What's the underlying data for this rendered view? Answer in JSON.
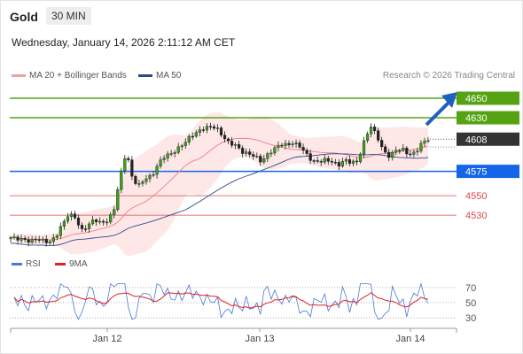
{
  "header": {
    "instrument": "Gold",
    "timeframe": "30 MIN",
    "datetime": "Wednesday, January 14, 2026 2:11:12 AM CET"
  },
  "legend": {
    "ma20": "MA 20 + Bollinger Bands",
    "ma50": "MA 50",
    "credit": "Research © 2026 Trading Central"
  },
  "rsi_legend": {
    "rsi": "RSI",
    "ma": "9MA"
  },
  "colors": {
    "green": "#55a313",
    "blue": "#1565e8",
    "red": "#e04848",
    "dark": "#333333",
    "ma20": "#ef7f7f",
    "band": "#fde3e3",
    "ma50": "#2a4a8a",
    "rsi": "#4a78d8",
    "rsima": "#e02020"
  },
  "chart_data": {
    "type": "candlestick",
    "y_range": [
      4492,
      4660
    ],
    "x_labels": [
      "Jan 12",
      "Jan 13",
      "Jan 14"
    ],
    "levels": [
      {
        "value": 4650,
        "label": "4650",
        "kind": "resistance"
      },
      {
        "value": 4630,
        "label": "4630",
        "kind": "resistance"
      },
      {
        "value": 4608,
        "label": "4608",
        "kind": "last"
      },
      {
        "value": 4575,
        "label": "4575",
        "kind": "pivot"
      },
      {
        "value": 4550,
        "label": "4550",
        "kind": "support"
      },
      {
        "value": 4530,
        "label": "4530",
        "kind": "support"
      }
    ],
    "price_path": [
      4507,
      4506,
      4505,
      4503,
      4506,
      4504,
      4502,
      4508,
      4520,
      4531,
      4528,
      4514,
      4519,
      4526,
      4522,
      4524,
      4533,
      4568,
      4596,
      4566,
      4561,
      4568,
      4570,
      4583,
      4591,
      4593,
      4598,
      4604,
      4611,
      4615,
      4619,
      4621,
      4620,
      4611,
      4604,
      4602,
      4595,
      4593,
      4591,
      4585,
      4592,
      4598,
      4603,
      4602,
      4604,
      4601,
      4593,
      4585,
      4585,
      4587,
      4585,
      4581,
      4587,
      4584,
      4585,
      4605,
      4622,
      4612,
      4596,
      4590,
      4597,
      4598,
      4592,
      4594,
      4604,
      4608
    ],
    "rsi": {
      "levels": [
        70,
        50,
        30
      ],
      "range": [
        22,
        78
      ]
    }
  }
}
